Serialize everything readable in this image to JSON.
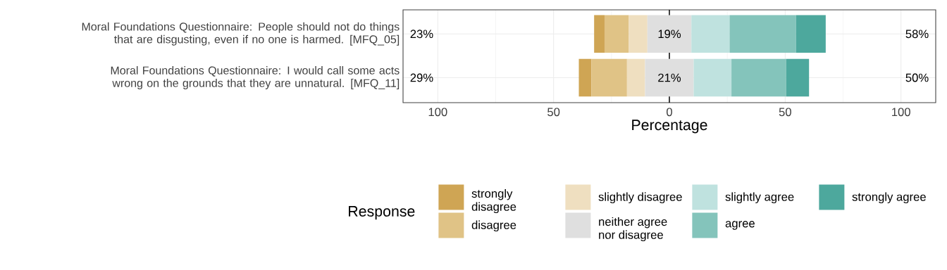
{
  "chart_data": {
    "type": "bar",
    "orientation": "horizontal",
    "xlabel": "Percentage",
    "legend_title": "Response",
    "legend": "bottom",
    "grid": true,
    "categories": [
      "Moral Foundations Questionnaire: People should not do things that are disgusting, even if no one is harmed. [MFQ_05]",
      "Moral Foundations Questionnaire: I would call some acts wrong on the grounds that they are unnatural. [MFQ_11]"
    ],
    "series": [
      {
        "name": "strongly disagree",
        "color": "#cfa554",
        "base": [
          -32.5,
          -39.1
        ],
        "values": [
          4.5,
          5.4
        ]
      },
      {
        "name": "disagree",
        "color": "#e0c386",
        "base": [
          -28,
          -33.7
        ],
        "values": [
          10.5,
          15.4
        ]
      },
      {
        "name": "slightly disagree",
        "color": "#efdfc0",
        "base": [
          -17.5,
          -18.3
        ],
        "values": [
          8,
          7.8
        ]
      },
      {
        "name": "neither agree nor disagree",
        "color": "#dfdfdf",
        "base": [
          -9.5,
          -10.5
        ],
        "values": [
          19,
          21
        ],
        "value_labels": [
          "19%",
          "21%"
        ]
      },
      {
        "name": "slightly agree",
        "color": "#bfe2df",
        "base": [
          9.5,
          10.5
        ],
        "values": [
          16.5,
          16.3
        ]
      },
      {
        "name": "agree",
        "color": "#84c4bb",
        "base": [
          26,
          26.8
        ],
        "values": [
          28.7,
          23.6
        ]
      },
      {
        "name": "strongly agree",
        "color": "#4da89d",
        "base": [
          54.7,
          50.4
        ],
        "values": [
          12.8,
          9.9
        ]
      }
    ],
    "xlim": [
      -115,
      115
    ],
    "xticks": [
      {
        "value": -100,
        "label": "100"
      },
      {
        "value": -75,
        "label": null
      },
      {
        "value": -50,
        "label": "50"
      },
      {
        "value": -25,
        "label": null
      },
      0,
      {
        "value": 25,
        "label": null
      },
      50,
      {
        "value": 75,
        "label": null
      },
      100
    ],
    "ref_lines": [
      {
        "axis": "x",
        "value": 0,
        "color": "#000000"
      }
    ],
    "annotations": [
      "23%",
      "58%",
      "29%",
      "50%"
    ]
  }
}
